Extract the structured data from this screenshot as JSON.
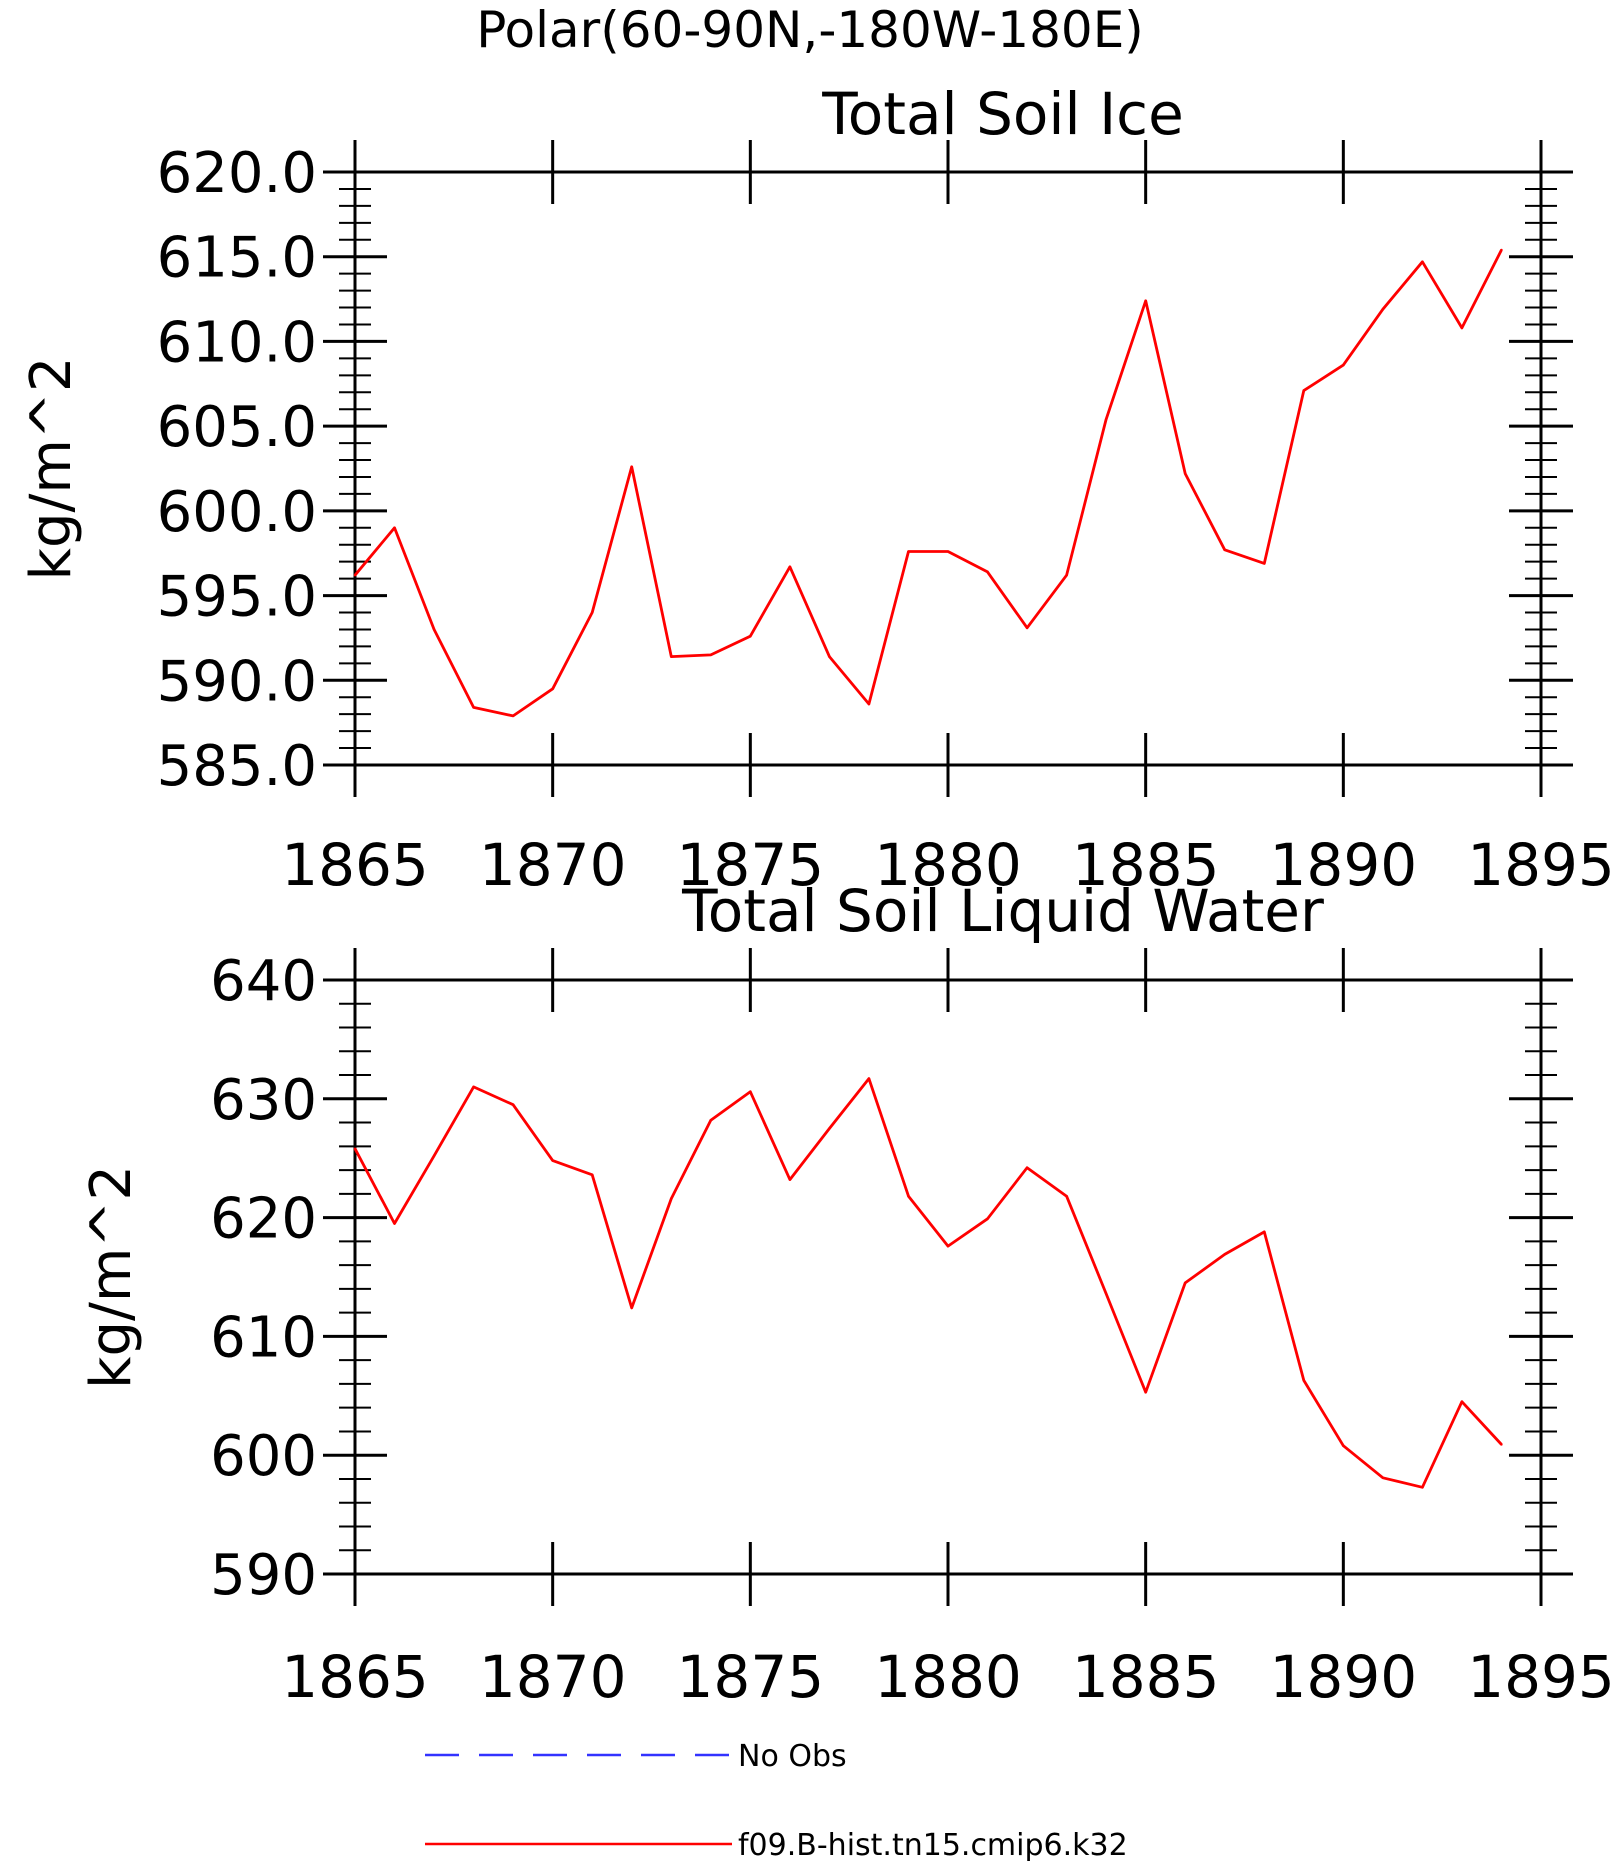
{
  "figure_title": "Polar(60-90N,-180W-180E)",
  "chart_data": [
    {
      "type": "line",
      "title": "Total Soil Ice",
      "ylabel": "kg/m^2",
      "xlabel": "",
      "xlim": [
        1865,
        1895
      ],
      "ylim": [
        585,
        620
      ],
      "xticks": [
        "1865",
        "1870",
        "1875",
        "1880",
        "1885",
        "1890",
        "1895"
      ],
      "yticks": [
        "585.0",
        "590.0",
        "595.0",
        "600.0",
        "605.0",
        "610.0",
        "615.0",
        "620.0"
      ],
      "color": "#ff0000",
      "series": [
        {
          "name": "f09.B-hist.tn15.cmip6.k32",
          "x": [
            1865,
            1866,
            1867,
            1868,
            1869,
            1870,
            1871,
            1872,
            1873,
            1874,
            1875,
            1876,
            1877,
            1878,
            1879,
            1880,
            1881,
            1882,
            1883,
            1884,
            1885,
            1886,
            1887,
            1888,
            1889,
            1890,
            1891,
            1892,
            1893,
            1894
          ],
          "y": [
            596.2,
            599.0,
            593.0,
            588.4,
            587.9,
            589.5,
            594.0,
            602.6,
            591.4,
            591.5,
            592.6,
            596.7,
            591.4,
            588.6,
            597.6,
            597.6,
            596.4,
            593.1,
            596.2,
            605.4,
            612.4,
            602.2,
            597.7,
            596.9,
            607.1,
            608.6,
            611.9,
            614.7,
            610.8,
            615.4
          ]
        }
      ]
    },
    {
      "type": "line",
      "title": "Total Soil Liquid Water",
      "ylabel": "kg/m^2",
      "xlabel": "",
      "xlim": [
        1865,
        1895
      ],
      "ylim": [
        590,
        640
      ],
      "xticks": [
        "1865",
        "1870",
        "1875",
        "1880",
        "1885",
        "1890",
        "1895"
      ],
      "yticks": [
        "590",
        "600",
        "610",
        "620",
        "630",
        "640"
      ],
      "color": "#ff0000",
      "series": [
        {
          "name": "f09.B-hist.tn15.cmip6.k32",
          "x": [
            1865,
            1866,
            1867,
            1868,
            1869,
            1870,
            1871,
            1872,
            1873,
            1874,
            1875,
            1876,
            1877,
            1878,
            1879,
            1880,
            1881,
            1882,
            1883,
            1884,
            1885,
            1886,
            1887,
            1888,
            1889,
            1890,
            1891,
            1892,
            1893,
            1894
          ],
          "y": [
            625.8,
            619.5,
            625.2,
            631.0,
            629.5,
            624.8,
            623.6,
            612.4,
            621.6,
            628.2,
            630.6,
            623.2,
            627.5,
            631.7,
            621.8,
            617.6,
            619.9,
            624.2,
            621.8,
            613.6,
            605.3,
            614.5,
            616.9,
            618.8,
            606.3,
            600.8,
            598.1,
            597.3,
            604.5,
            600.9
          ]
        }
      ]
    }
  ],
  "legend": {
    "items": [
      {
        "label": "No Obs",
        "color": "#3333ff",
        "style": "dashed"
      },
      {
        "label": "f09.B-hist.tn15.cmip6.k32",
        "color": "#ff0000",
        "style": "solid"
      }
    ]
  }
}
